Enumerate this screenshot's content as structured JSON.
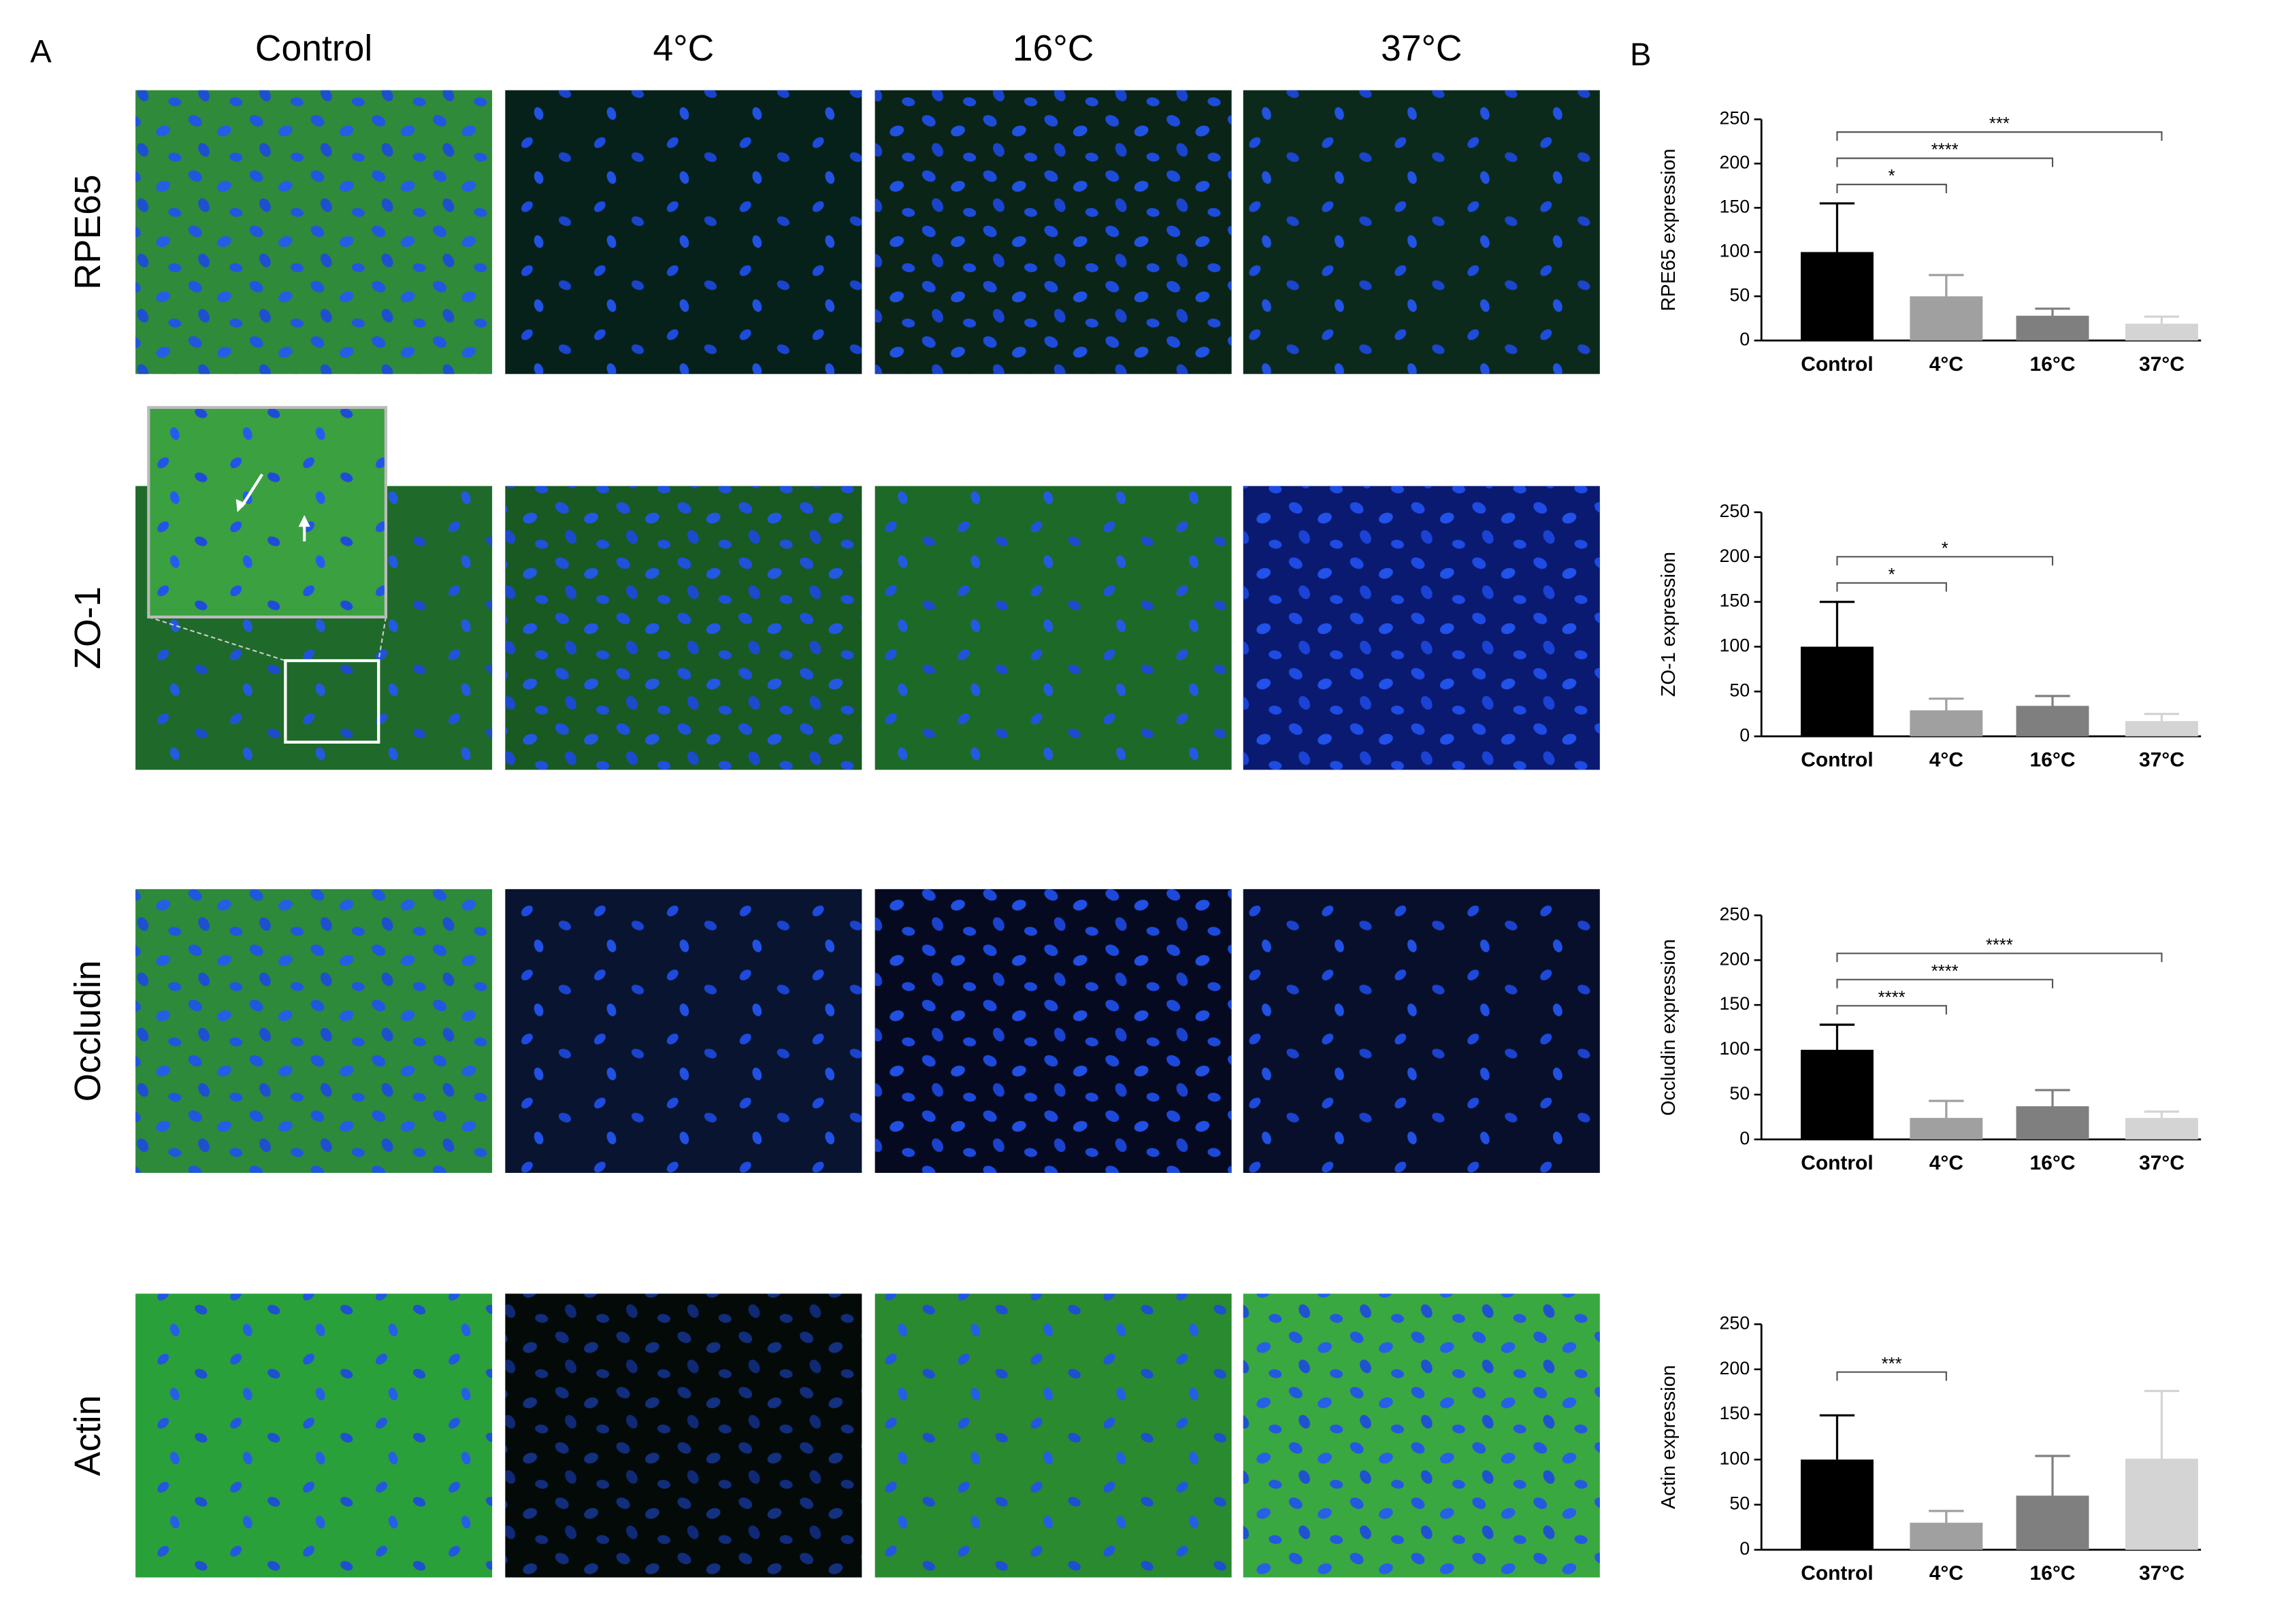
{
  "panel_a": {
    "label": "A",
    "columns": [
      "Control",
      "4°C",
      "16°C",
      "37°C"
    ],
    "rows": [
      "RPE65",
      "ZO-1",
      "Occludin",
      "Actin"
    ]
  },
  "panel_b": {
    "label": "B"
  },
  "chart_data": [
    {
      "type": "bar",
      "y_label": "RPE65 expression",
      "categories": [
        "Control",
        "4°C",
        "16°C",
        "37°C"
      ],
      "values": [
        100,
        50,
        28,
        19
      ],
      "errors": [
        55,
        24,
        8,
        8
      ],
      "colors": [
        "#000000",
        "#a0a0a0",
        "#7f7f7f",
        "#d4d4d4"
      ],
      "ylim": [
        0,
        250
      ],
      "yticks": [
        0,
        50,
        100,
        150,
        200,
        250
      ],
      "significance": [
        {
          "text": "*",
          "between": [
            "Control",
            "4°C"
          ]
        },
        {
          "text": "****",
          "between": [
            "Control",
            "16°C"
          ]
        },
        {
          "text": "***",
          "between": [
            "Control",
            "37°C"
          ]
        }
      ]
    },
    {
      "type": "bar",
      "y_label": "ZO-1 expression",
      "categories": [
        "Control",
        "4°C",
        "16°C",
        "37°C"
      ],
      "values": [
        100,
        29,
        34,
        17
      ],
      "errors": [
        50,
        13,
        11,
        8
      ],
      "colors": [
        "#000000",
        "#a0a0a0",
        "#7f7f7f",
        "#d4d4d4"
      ],
      "ylim": [
        0,
        250
      ],
      "yticks": [
        0,
        50,
        100,
        150,
        200,
        250
      ],
      "significance": [
        {
          "text": "*",
          "between": [
            "Control",
            "4°C"
          ]
        },
        {
          "text": "*",
          "between": [
            "Control",
            "16°C"
          ]
        }
      ]
    },
    {
      "type": "bar",
      "y_label": "Occludin expression",
      "categories": [
        "Control",
        "4°C",
        "16°C",
        "37°C"
      ],
      "values": [
        100,
        24,
        37,
        24
      ],
      "errors": [
        28,
        19,
        18,
        7
      ],
      "colors": [
        "#000000",
        "#a0a0a0",
        "#7f7f7f",
        "#d4d4d4"
      ],
      "ylim": [
        0,
        250
      ],
      "yticks": [
        0,
        50,
        100,
        150,
        200,
        250
      ],
      "significance": [
        {
          "text": "****",
          "between": [
            "Control",
            "4°C"
          ]
        },
        {
          "text": "****",
          "between": [
            "Control",
            "16°C"
          ]
        },
        {
          "text": "****",
          "between": [
            "Control",
            "37°C"
          ]
        }
      ]
    },
    {
      "type": "bar",
      "y_label": "Actin expression",
      "categories": [
        "Control",
        "4°C",
        "16°C",
        "37°C"
      ],
      "values": [
        100,
        30,
        60,
        101
      ],
      "errors": [
        49,
        13,
        44,
        75
      ],
      "colors": [
        "#000000",
        "#a0a0a0",
        "#7f7f7f",
        "#d4d4d4"
      ],
      "ylim": [
        0,
        250
      ],
      "yticks": [
        0,
        50,
        100,
        150,
        200,
        250
      ],
      "significance": [
        {
          "text": "***",
          "between": [
            "Control",
            "4°C"
          ]
        }
      ]
    }
  ]
}
